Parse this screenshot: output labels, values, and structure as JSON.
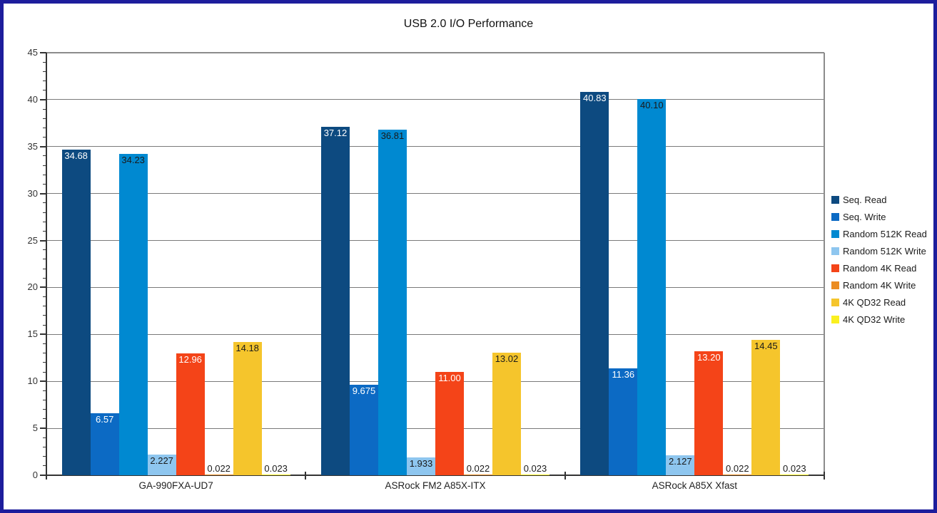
{
  "style": {
    "frame_color": "#1D1D9C",
    "background": "#FFFFFF",
    "gridline_color": "#7A7A7A",
    "axis_color": "#333333",
    "plot_border_color": "#8C8C8C",
    "text_color": "#1A1A1A"
  },
  "chart_data": {
    "type": "bar",
    "title": "USB 2.0 I/O Performance",
    "categories": [
      "GA-990FXA-UD7",
      "ASRock FM2 A85X-ITX",
      "ASRock A85X Xfast"
    ],
    "series": [
      {
        "name": "Seq. Read",
        "color": "#0D4A80",
        "label_color": "#FFFFFF",
        "values": [
          34.68,
          37.12,
          40.83
        ],
        "labels": [
          "34.68",
          "37.12",
          "40.83"
        ]
      },
      {
        "name": "Seq. Write",
        "color": "#0C6AC4",
        "label_color": "#FFFFFF",
        "values": [
          6.57,
          9.675,
          11.36
        ],
        "labels": [
          "6.57",
          "9.675",
          "11.36"
        ]
      },
      {
        "name": "Random 512K Read",
        "color": "#0089D1",
        "label_color": "#1A1A1A",
        "values": [
          34.23,
          36.81,
          40.1
        ],
        "labels": [
          "34.23",
          "36.81",
          "40.10"
        ]
      },
      {
        "name": "Random 512K Write",
        "color": "#8EC6EF",
        "label_color": "#1A1A1A",
        "values": [
          2.227,
          1.933,
          2.127
        ],
        "labels": [
          "2.227",
          "1.933",
          "2.127"
        ]
      },
      {
        "name": "Random 4K Read",
        "color": "#F44418",
        "label_color": "#FFFFFF",
        "values": [
          12.96,
          11.0,
          13.2
        ],
        "labels": [
          "12.96",
          "11.00",
          "13.20"
        ]
      },
      {
        "name": "Random 4K Write",
        "color": "#EB8C21",
        "label_color": "#1A1A1A",
        "values": [
          0.022,
          0.022,
          0.022
        ],
        "labels": [
          "0.022",
          "0.022",
          "0.022"
        ]
      },
      {
        "name": "4K QD32 Read",
        "color": "#F5C52C",
        "label_color": "#1A1A1A",
        "values": [
          14.18,
          13.02,
          14.45
        ],
        "labels": [
          "14.18",
          "13.02",
          "14.45"
        ]
      },
      {
        "name": "4K QD32 Write",
        "color": "#FAF020",
        "label_color": "#1A1A1A",
        "values": [
          0.023,
          0.023,
          0.023
        ],
        "labels": [
          "0.023",
          "0.023",
          "0.023"
        ]
      }
    ],
    "ylim": [
      0,
      45
    ],
    "y_major_step": 5,
    "y_minor_step": 1,
    "y_tick_labels": [
      "0",
      "5",
      "10",
      "15",
      "20",
      "25",
      "30",
      "35",
      "40",
      "45"
    ],
    "grid": true,
    "legend_position": "right"
  }
}
